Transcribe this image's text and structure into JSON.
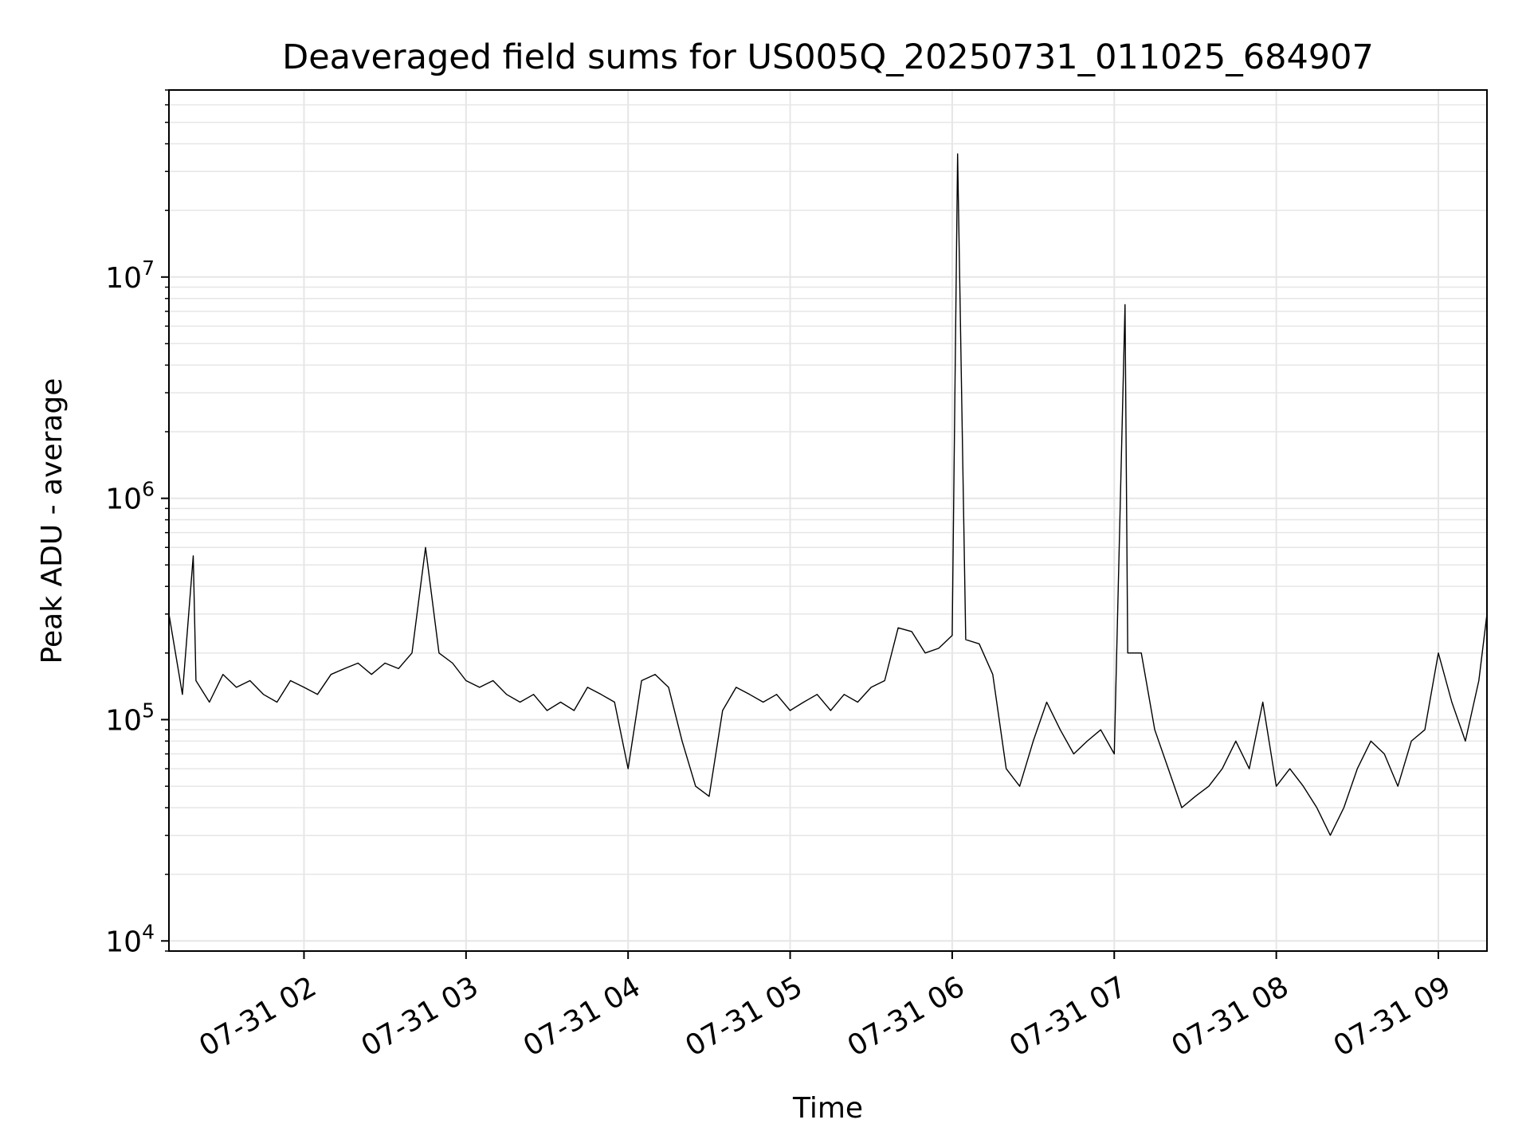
{
  "chart_data": {
    "type": "line",
    "title": "Deaveraged field sums for US005Q_20250731_011025_684907",
    "xlabel": "Time",
    "ylabel": "Peak ADU - average",
    "yscale": "log",
    "xlim": [
      "2025-07-31 01:10",
      "2025-07-31 09:18"
    ],
    "ylim": [
      9000,
      70000000
    ],
    "grid": true,
    "line_color": "#000000",
    "x_ticks": [
      {
        "t": "2025-07-31 02:00",
        "label": "07-31 02"
      },
      {
        "t": "2025-07-31 03:00",
        "label": "07-31 03"
      },
      {
        "t": "2025-07-31 04:00",
        "label": "07-31 04"
      },
      {
        "t": "2025-07-31 05:00",
        "label": "07-31 05"
      },
      {
        "t": "2025-07-31 06:00",
        "label": "07-31 06"
      },
      {
        "t": "2025-07-31 07:00",
        "label": "07-31 07"
      },
      {
        "t": "2025-07-31 08:00",
        "label": "07-31 08"
      },
      {
        "t": "2025-07-31 09:00",
        "label": "07-31 09"
      }
    ],
    "y_ticks": [
      {
        "value": 10000,
        "base": "10",
        "exp": "4"
      },
      {
        "value": 100000,
        "base": "10",
        "exp": "5"
      },
      {
        "value": 1000000,
        "base": "10",
        "exp": "6"
      },
      {
        "value": 10000000,
        "base": "10",
        "exp": "7"
      }
    ],
    "series": [
      {
        "x": [
          "2025-07-31 01:10",
          "2025-07-31 01:15",
          "2025-07-31 01:19",
          "2025-07-31 01:20",
          "2025-07-31 01:25",
          "2025-07-31 01:30",
          "2025-07-31 01:35",
          "2025-07-31 01:40",
          "2025-07-31 01:45",
          "2025-07-31 01:50",
          "2025-07-31 01:55",
          "2025-07-31 02:00",
          "2025-07-31 02:05",
          "2025-07-31 02:10",
          "2025-07-31 02:15",
          "2025-07-31 02:20",
          "2025-07-31 02:25",
          "2025-07-31 02:30",
          "2025-07-31 02:35",
          "2025-07-31 02:40",
          "2025-07-31 02:45",
          "2025-07-31 02:50",
          "2025-07-31 02:55",
          "2025-07-31 03:00",
          "2025-07-31 03:05",
          "2025-07-31 03:10",
          "2025-07-31 03:15",
          "2025-07-31 03:20",
          "2025-07-31 03:25",
          "2025-07-31 03:30",
          "2025-07-31 03:35",
          "2025-07-31 03:40",
          "2025-07-31 03:45",
          "2025-07-31 03:50",
          "2025-07-31 03:55",
          "2025-07-31 04:00",
          "2025-07-31 04:05",
          "2025-07-31 04:10",
          "2025-07-31 04:15",
          "2025-07-31 04:20",
          "2025-07-31 04:25",
          "2025-07-31 04:30",
          "2025-07-31 04:35",
          "2025-07-31 04:40",
          "2025-07-31 04:45",
          "2025-07-31 04:50",
          "2025-07-31 04:55",
          "2025-07-31 05:00",
          "2025-07-31 05:05",
          "2025-07-31 05:10",
          "2025-07-31 05:15",
          "2025-07-31 05:20",
          "2025-07-31 05:25",
          "2025-07-31 05:30",
          "2025-07-31 05:35",
          "2025-07-31 05:40",
          "2025-07-31 05:45",
          "2025-07-31 05:50",
          "2025-07-31 05:55",
          "2025-07-31 06:00",
          "2025-07-31 06:02",
          "2025-07-31 06:05",
          "2025-07-31 06:10",
          "2025-07-31 06:15",
          "2025-07-31 06:20",
          "2025-07-31 06:25",
          "2025-07-31 06:30",
          "2025-07-31 06:35",
          "2025-07-31 06:40",
          "2025-07-31 06:45",
          "2025-07-31 06:50",
          "2025-07-31 06:55",
          "2025-07-31 07:00",
          "2025-07-31 07:04",
          "2025-07-31 07:05",
          "2025-07-31 07:10",
          "2025-07-31 07:15",
          "2025-07-31 07:20",
          "2025-07-31 07:25",
          "2025-07-31 07:30",
          "2025-07-31 07:35",
          "2025-07-31 07:40",
          "2025-07-31 07:45",
          "2025-07-31 07:50",
          "2025-07-31 07:55",
          "2025-07-31 08:00",
          "2025-07-31 08:05",
          "2025-07-31 08:10",
          "2025-07-31 08:15",
          "2025-07-31 08:20",
          "2025-07-31 08:25",
          "2025-07-31 08:30",
          "2025-07-31 08:35",
          "2025-07-31 08:40",
          "2025-07-31 08:45",
          "2025-07-31 08:50",
          "2025-07-31 08:55",
          "2025-07-31 09:00",
          "2025-07-31 09:05",
          "2025-07-31 09:10",
          "2025-07-31 09:15",
          "2025-07-31 09:18"
        ],
        "values": [
          300000,
          130000,
          550000,
          150000,
          120000,
          160000,
          140000,
          150000,
          130000,
          120000,
          150000,
          140000,
          130000,
          160000,
          170000,
          180000,
          160000,
          180000,
          170000,
          200000,
          600000,
          200000,
          180000,
          150000,
          140000,
          150000,
          130000,
          120000,
          130000,
          110000,
          120000,
          110000,
          140000,
          130000,
          120000,
          60000,
          150000,
          160000,
          140000,
          80000,
          50000,
          45000,
          110000,
          140000,
          130000,
          120000,
          130000,
          110000,
          120000,
          130000,
          110000,
          130000,
          120000,
          140000,
          150000,
          260000,
          250000,
          200000,
          210000,
          240000,
          36000000,
          230000,
          220000,
          160000,
          60000,
          50000,
          80000,
          120000,
          90000,
          70000,
          80000,
          90000,
          70000,
          7500000,
          200000,
          200000,
          90000,
          60000,
          40000,
          45000,
          50000,
          60000,
          80000,
          60000,
          120000,
          50000,
          60000,
          50000,
          40000,
          30000,
          40000,
          60000,
          80000,
          70000,
          50000,
          80000,
          90000,
          200000,
          120000,
          80000,
          150000,
          300000
        ]
      }
    ]
  }
}
